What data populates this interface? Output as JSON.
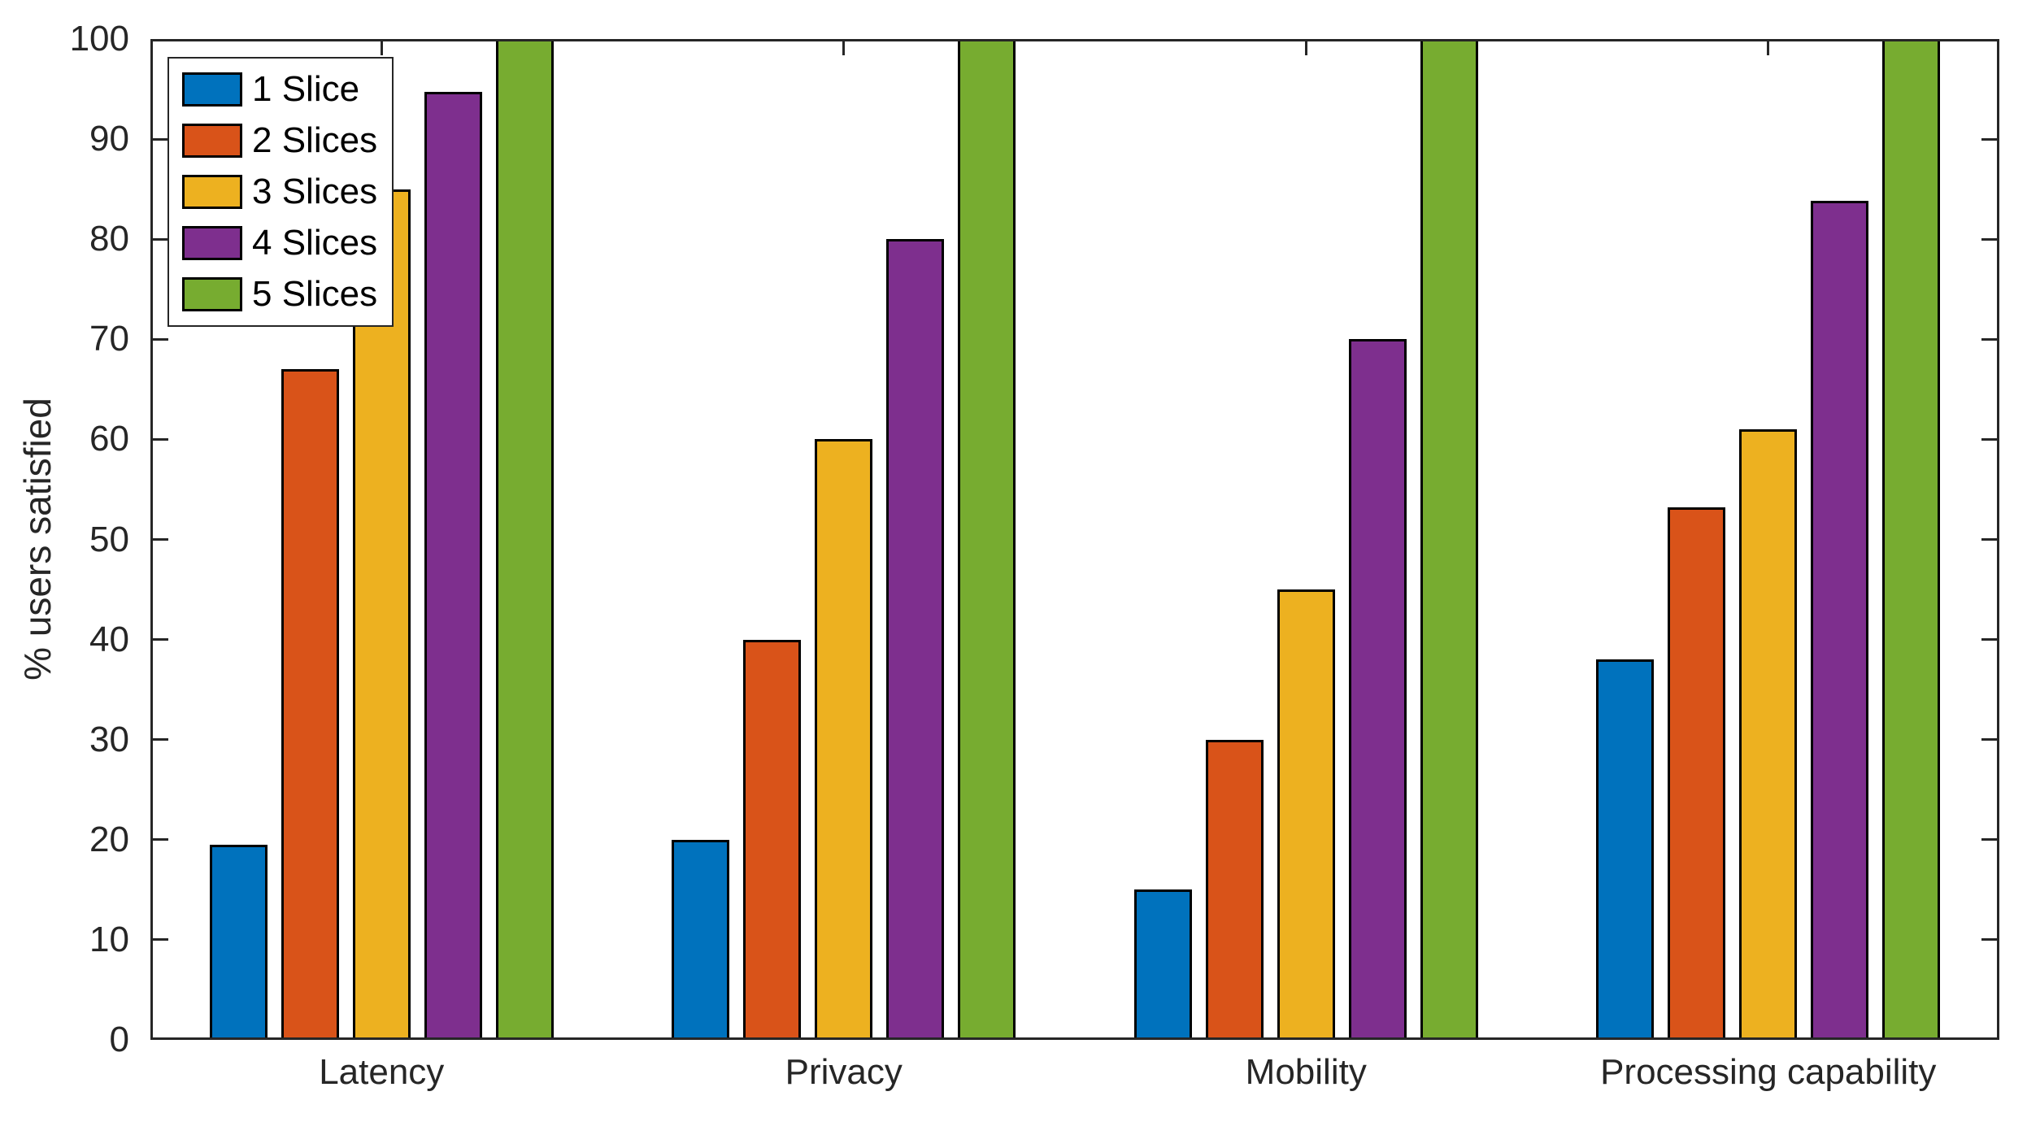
{
  "figure": {
    "background": "#ffffff",
    "axis_color": "#262626",
    "bar_edge_color": "#000000"
  },
  "chart_data": {
    "type": "bar",
    "title": "",
    "xlabel": "",
    "ylabel": "% users satisfied",
    "ylim": [
      0,
      100
    ],
    "yticks": [
      0,
      10,
      20,
      30,
      40,
      50,
      60,
      70,
      80,
      90,
      100
    ],
    "grid": false,
    "legend_position": "top-left-inside",
    "categories": [
      "Latency",
      "Privacy",
      "Mobility",
      "Processing capability"
    ],
    "series": [
      {
        "name": "1 Slice",
        "color": "#0072BD",
        "values": [
          19.5,
          20,
          15,
          38
        ]
      },
      {
        "name": "2 Slices",
        "color": "#D95319",
        "values": [
          67,
          40,
          30,
          53.2
        ]
      },
      {
        "name": "3 Slices",
        "color": "#EDB120",
        "values": [
          85,
          60,
          45,
          61
        ]
      },
      {
        "name": "4 Slices",
        "color": "#7E2F8E",
        "values": [
          94.7,
          80,
          70,
          83.8
        ]
      },
      {
        "name": "5 Slices",
        "color": "#77AC30",
        "values": [
          100,
          100,
          100,
          100
        ]
      }
    ]
  }
}
